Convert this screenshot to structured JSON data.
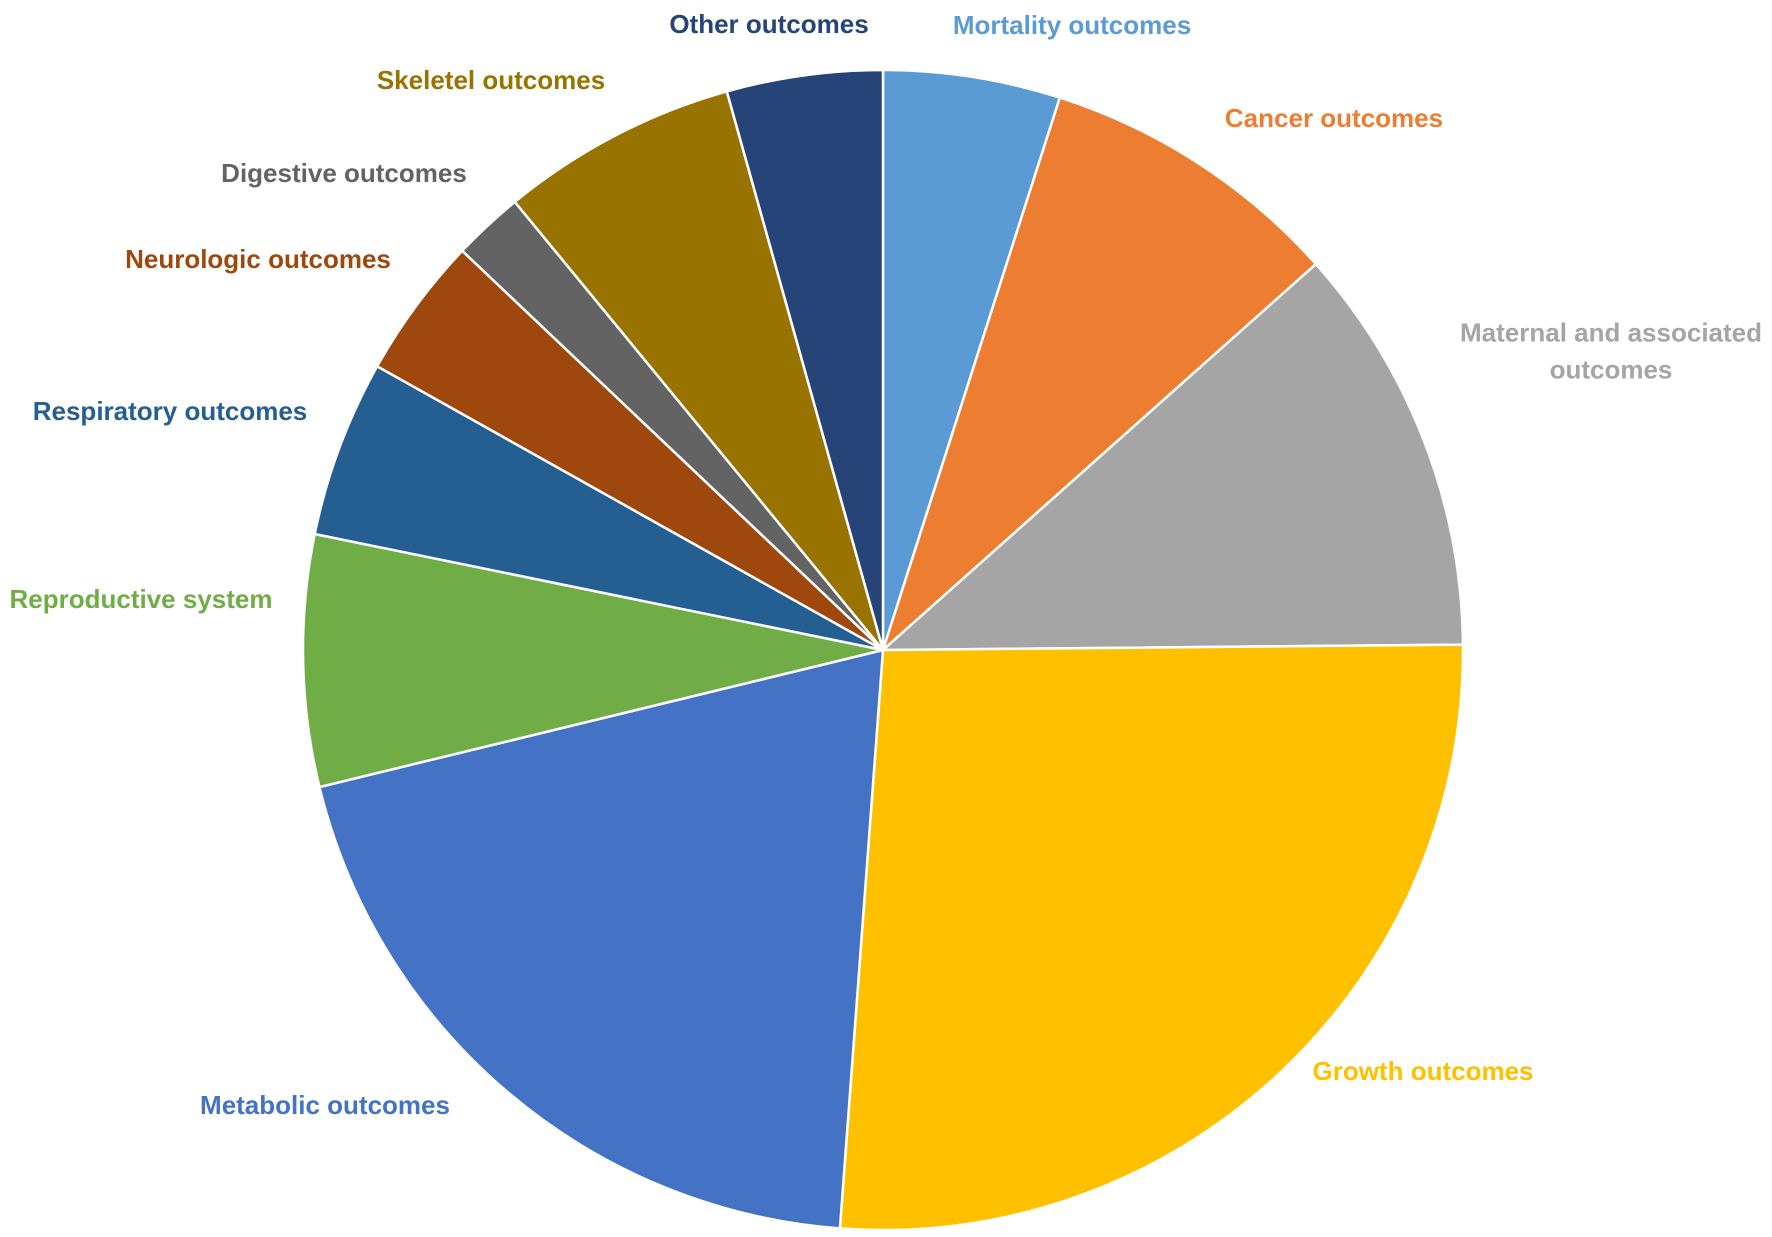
{
  "chart_data": {
    "type": "pie",
    "title": "",
    "slices": [
      {
        "label_lines": [
          "Mortality outcomes"
        ],
        "value": 5.0,
        "color": "#5B9BD5"
      },
      {
        "label_lines": [
          "Cancer outcomes"
        ],
        "value": 8.6,
        "color": "#ED7D31"
      },
      {
        "label_lines": [
          "Maternal and associated",
          "outcomes"
        ],
        "value": 11.6,
        "color": "#A5A5A5"
      },
      {
        "label_lines": [
          "Growth outcomes"
        ],
        "value": 26.7,
        "color": "#FFC000"
      },
      {
        "label_lines": [
          "Metabolic outcomes"
        ],
        "value": 20.3,
        "color": "#4472C4"
      },
      {
        "label_lines": [
          "Reproductive system"
        ],
        "value": 7.1,
        "color": "#70AD47"
      },
      {
        "label_lines": [
          "Respiratory outcomes"
        ],
        "value": 5.0,
        "color": "#255E91"
      },
      {
        "label_lines": [
          "Neurologic outcomes"
        ],
        "value": 4.0,
        "color": "#9E480E"
      },
      {
        "label_lines": [
          "Digestive outcomes"
        ],
        "value": 2.0,
        "color": "#636363"
      },
      {
        "label_lines": [
          "Skeletel outcomes"
        ],
        "value": 6.7,
        "color": "#997300"
      },
      {
        "label_lines": [
          "Other outcomes"
        ],
        "value": 4.4,
        "color": "#264478"
      }
    ],
    "start": "12 o'clock",
    "direction": "clockwise",
    "legend": "none",
    "data_labels": "category names beside slices"
  }
}
